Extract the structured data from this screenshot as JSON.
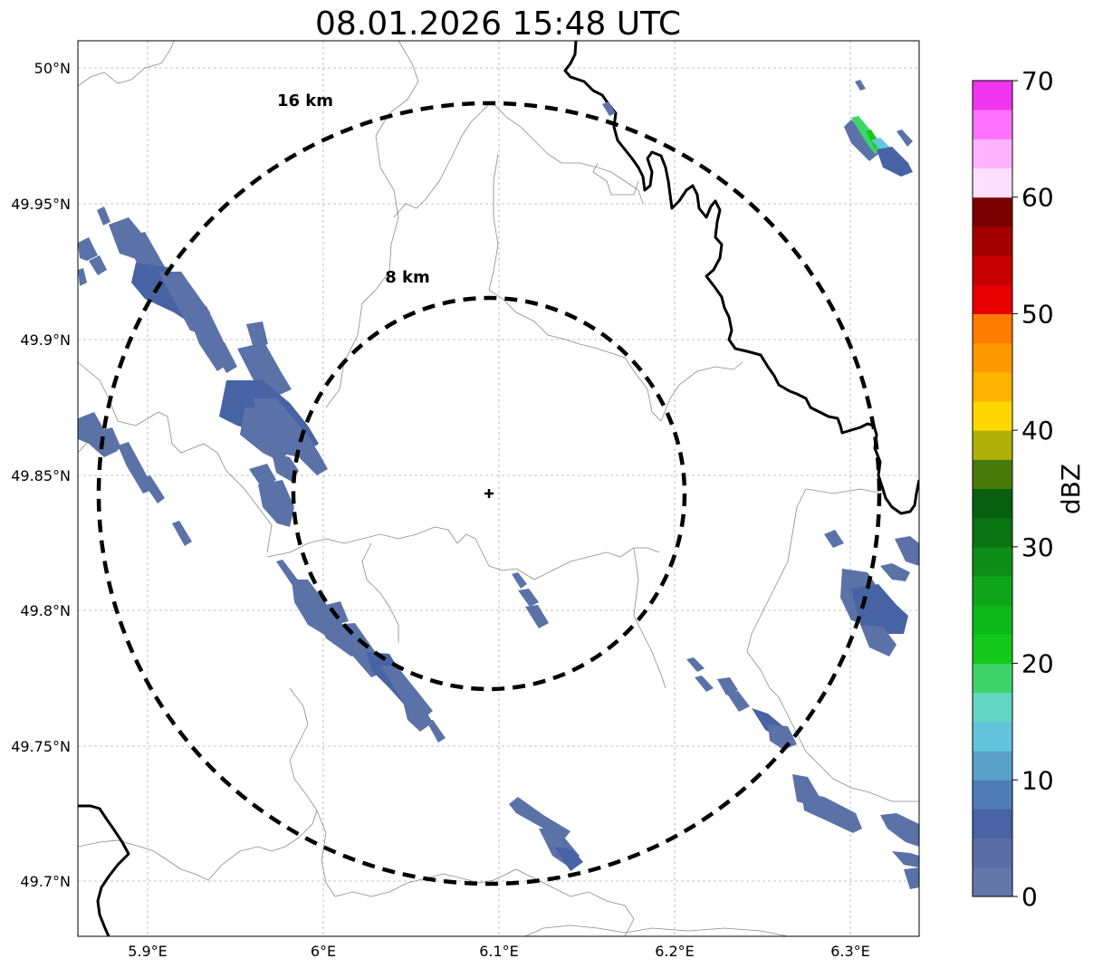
{
  "title": "08.01.2026 15:48 UTC",
  "map": {
    "lon_ticks": [
      "5.9°E",
      "6°E",
      "6.1°E",
      "6.2°E",
      "6.3°E"
    ],
    "lat_ticks": [
      "50°N",
      "49.95°N",
      "49.9°N",
      "49.85°N",
      "49.8°N",
      "49.75°N",
      "49.7°N"
    ],
    "range_rings": [
      {
        "label": "16 km",
        "radius_km": 16
      },
      {
        "label": "8 km",
        "radius_km": 8
      }
    ],
    "radar_marker": "radar-site"
  },
  "colorbar": {
    "label": "dBZ",
    "ticks": [
      "0",
      "10",
      "20",
      "30",
      "40",
      "50",
      "60",
      "70"
    ],
    "colors": [
      "#6378a8",
      "#5a6da6",
      "#4a63a5",
      "#4f7db3",
      "#5aa1c9",
      "#64c4dd",
      "#63d6c4",
      "#3ed46a",
      "#14c91c",
      "#0db81b",
      "#0ea51a",
      "#0d8d17",
      "#0a7413",
      "#075f0f",
      "#477a0b",
      "#b1b00b",
      "#fed700",
      "#feb300",
      "#fe9800",
      "#fe7c00",
      "#e60000",
      "#c60000",
      "#a40000",
      "#7a0000",
      "#ffdfff",
      "#ffb3ff",
      "#ff73ff",
      "#f035f0"
    ]
  }
}
